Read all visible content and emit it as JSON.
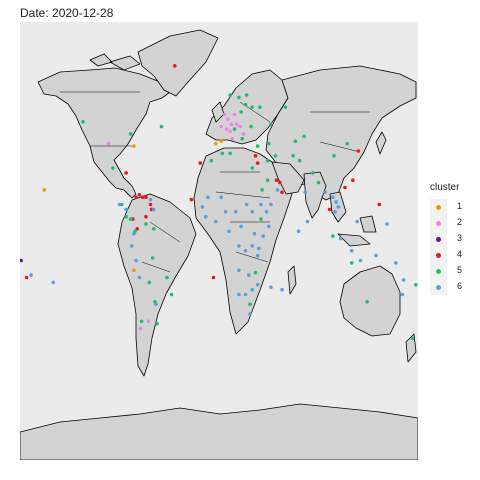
{
  "title": "Date: 2020-12-28",
  "legend": {
    "title": "cluster",
    "items": [
      {
        "label": "1",
        "color": "#E69F00"
      },
      {
        "label": "2",
        "color": "#EE82EE"
      },
      {
        "label": "3",
        "color": "#6A0DAD"
      },
      {
        "label": "4",
        "color": "#E41A1C"
      },
      {
        "label": "5",
        "color": "#1EBF6A"
      },
      {
        "label": "6",
        "color": "#56A0E6"
      }
    ]
  },
  "chart_data": {
    "type": "scatter",
    "title": "Date: 2020-12-28",
    "xlabel": "",
    "ylabel": "",
    "legend_position": "right",
    "series": [
      {
        "name": "1",
        "color": "#E69F00",
        "points": [
          {
            "lon": -77,
            "lat": 39
          },
          {
            "lon": -3,
            "lat": 40
          },
          {
            "lon": -77,
            "lat": -12
          },
          {
            "lon": -158,
            "lat": 21
          },
          {
            "lon": 2,
            "lat": 41
          }
        ]
      },
      {
        "name": "2",
        "color": "#EE82EE",
        "points": [
          {
            "lon": -100,
            "lat": 40
          },
          {
            "lon": 8,
            "lat": 50
          },
          {
            "lon": 14,
            "lat": 52
          },
          {
            "lon": 5,
            "lat": 52
          },
          {
            "lon": 16,
            "lat": 48
          },
          {
            "lon": 19,
            "lat": 47
          },
          {
            "lon": 10,
            "lat": 45
          },
          {
            "lon": 22,
            "lat": 44
          },
          {
            "lon": 2,
            "lat": 47
          },
          {
            "lon": 12,
            "lat": 42
          },
          {
            "lon": -64,
            "lat": -33
          },
          {
            "lon": -71,
            "lat": -36
          },
          {
            "lon": 7,
            "lat": 46
          },
          {
            "lon": 11,
            "lat": 48
          }
        ]
      },
      {
        "name": "3",
        "color": "#6A0DAD",
        "points": [
          {
            "lon": -179,
            "lat": -8
          }
        ]
      },
      {
        "name": "4",
        "color": "#E41A1C",
        "points": [
          {
            "lon": -40,
            "lat": 72
          },
          {
            "lon": -84,
            "lat": 28
          },
          {
            "lon": -75,
            "lat": 18
          },
          {
            "lon": -72,
            "lat": 19
          },
          {
            "lon": -69,
            "lat": 18
          },
          {
            "lon": -66,
            "lat": 18
          },
          {
            "lon": -62,
            "lat": 15
          },
          {
            "lon": -61,
            "lat": 13
          },
          {
            "lon": -78,
            "lat": 9
          },
          {
            "lon": -74,
            "lat": 5
          },
          {
            "lon": -66,
            "lat": 10
          },
          {
            "lon": 35,
            "lat": 32
          },
          {
            "lon": 52,
            "lat": 25
          },
          {
            "lon": 55,
            "lat": 24
          },
          {
            "lon": 57,
            "lat": 20
          },
          {
            "lon": 100,
            "lat": 13
          },
          {
            "lon": 121,
            "lat": 25
          },
          {
            "lon": 126,
            "lat": 37
          },
          {
            "lon": 145,
            "lat": 15
          },
          {
            "lon": -174,
            "lat": -15
          },
          {
            "lon": -25,
            "lat": 17
          },
          {
            "lon": -17,
            "lat": 32
          },
          {
            "lon": 33,
            "lat": 35
          },
          {
            "lon": -5,
            "lat": -15
          },
          {
            "lon": 114,
            "lat": 22
          }
        ]
      },
      {
        "name": "5",
        "color": "#1EBF6A",
        "points": [
          {
            "lon": -123,
            "lat": 49
          },
          {
            "lon": -80,
            "lat": 44
          },
          {
            "lon": -96,
            "lat": 30
          },
          {
            "lon": -88,
            "lat": 15
          },
          {
            "lon": -84,
            "lat": 10
          },
          {
            "lon": -80,
            "lat": 9
          },
          {
            "lon": -76,
            "lat": 4
          },
          {
            "lon": -66,
            "lat": 7
          },
          {
            "lon": -59,
            "lat": 5
          },
          {
            "lon": -63,
            "lat": -17
          },
          {
            "lon": -47,
            "lat": -15
          },
          {
            "lon": -43,
            "lat": -22
          },
          {
            "lon": -70,
            "lat": -33
          },
          {
            "lon": -56,
            "lat": -34
          },
          {
            "lon": -58,
            "lat": -25
          },
          {
            "lon": 10,
            "lat": 60
          },
          {
            "lon": 18,
            "lat": 59
          },
          {
            "lon": 25,
            "lat": 60
          },
          {
            "lon": 30,
            "lat": 55
          },
          {
            "lon": 24,
            "lat": 56
          },
          {
            "lon": 20,
            "lat": 53
          },
          {
            "lon": 37,
            "lat": 55
          },
          {
            "lon": 47,
            "lat": 48
          },
          {
            "lon": 69,
            "lat": 41
          },
          {
            "lon": 77,
            "lat": 43
          },
          {
            "lon": 45,
            "lat": 40
          },
          {
            "lon": 35,
            "lat": 39
          },
          {
            "lon": 44,
            "lat": 33
          },
          {
            "lon": 51,
            "lat": 35
          },
          {
            "lon": 67,
            "lat": 35
          },
          {
            "lon": 73,
            "lat": 33
          },
          {
            "lon": 85,
            "lat": 28
          },
          {
            "lon": 90,
            "lat": 24
          },
          {
            "lon": 104,
            "lat": 35
          },
          {
            "lon": 116,
            "lat": 40
          },
          {
            "lon": 103,
            "lat": 2
          },
          {
            "lon": 120,
            "lat": -9
          },
          {
            "lon": 134,
            "lat": -25
          },
          {
            "lon": 175,
            "lat": -40
          },
          {
            "lon": 30,
            "lat": 30
          },
          {
            "lon": 3,
            "lat": 36
          },
          {
            "lon": -7,
            "lat": 33
          },
          {
            "lon": 10,
            "lat": 36
          },
          {
            "lon": 28,
            "lat": -26
          },
          {
            "lon": 33,
            "lat": -13
          },
          {
            "lon": 38,
            "lat": 9
          },
          {
            "lon": 39,
            "lat": 21
          },
          {
            "lon": 29,
            "lat": 47
          },
          {
            "lon": 14,
            "lat": 46
          },
          {
            "lon": 21,
            "lat": 42
          },
          {
            "lon": 44,
            "lat": 25
          },
          {
            "lon": 60,
            "lat": 55
          },
          {
            "lon": 178,
            "lat": -18
          },
          {
            "lon": -52,
            "lat": 47
          },
          {
            "lon": -60,
            "lat": -7
          }
        ]
      },
      {
        "name": "6",
        "color": "#56A0E6",
        "points": [
          {
            "lon": 6,
            "lat": 12
          },
          {
            "lon": 9,
            "lat": 4
          },
          {
            "lon": 15,
            "lat": 12
          },
          {
            "lon": 20,
            "lat": 6
          },
          {
            "lon": 25,
            "lat": 15
          },
          {
            "lon": 30,
            "lat": 12
          },
          {
            "lon": -3,
            "lat": 8
          },
          {
            "lon": -12,
            "lat": 10
          },
          {
            "lon": -15,
            "lat": 14
          },
          {
            "lon": -10,
            "lat": 18
          },
          {
            "lon": 2,
            "lat": 18
          },
          {
            "lon": 18,
            "lat": -2
          },
          {
            "lon": 24,
            "lat": -4
          },
          {
            "lon": 30,
            "lat": -2
          },
          {
            "lon": 36,
            "lat": -3
          },
          {
            "lon": 40,
            "lat": 2
          },
          {
            "lon": 45,
            "lat": 6
          },
          {
            "lon": 35,
            "lat": -6
          },
          {
            "lon": 18,
            "lat": -12
          },
          {
            "lon": 27,
            "lat": -14
          },
          {
            "lon": 30,
            "lat": -20
          },
          {
            "lon": 24,
            "lat": -22
          },
          {
            "lon": 18,
            "lat": -22
          },
          {
            "lon": 35,
            "lat": -18
          },
          {
            "lon": 47,
            "lat": -19
          },
          {
            "lon": 57,
            "lat": -20
          },
          {
            "lon": 28,
            "lat": -30
          },
          {
            "lon": 47,
            "lat": 15
          },
          {
            "lon": 53,
            "lat": 21
          },
          {
            "lon": 78,
            "lat": 20
          },
          {
            "lon": 80,
            "lat": 8
          },
          {
            "lon": 96,
            "lat": 20
          },
          {
            "lon": 105,
            "lat": 12
          },
          {
            "lon": 106,
            "lat": 16
          },
          {
            "lon": 108,
            "lat": 14
          },
          {
            "lon": 110,
            "lat": 1
          },
          {
            "lon": 125,
            "lat": 8
          },
          {
            "lon": 120,
            "lat": -4
          },
          {
            "lon": 142,
            "lat": -6
          },
          {
            "lon": 152,
            "lat": 7
          },
          {
            "lon": 160,
            "lat": -9
          },
          {
            "lon": 167,
            "lat": -16
          },
          {
            "lon": -90,
            "lat": 15
          },
          {
            "lon": -84,
            "lat": 13
          },
          {
            "lon": -77,
            "lat": 3
          },
          {
            "lon": -79,
            "lat": -2
          },
          {
            "lon": -75,
            "lat": -8
          },
          {
            "lon": -72,
            "lat": -15
          },
          {
            "lon": -57,
            "lat": -26
          },
          {
            "lon": -62,
            "lat": 17
          },
          {
            "lon": -59,
            "lat": 13
          },
          {
            "lon": -170,
            "lat": -14
          },
          {
            "lon": -150,
            "lat": -17
          },
          {
            "lon": 166,
            "lat": -22
          },
          {
            "lon": 72,
            "lat": 4
          },
          {
            "lon": 128,
            "lat": -8
          },
          {
            "lon": 103,
            "lat": 18
          },
          {
            "lon": 38,
            "lat": 15
          },
          {
            "lon": 43,
            "lat": 12
          },
          {
            "lon": 32,
            "lat": 3
          }
        ]
      }
    ]
  }
}
